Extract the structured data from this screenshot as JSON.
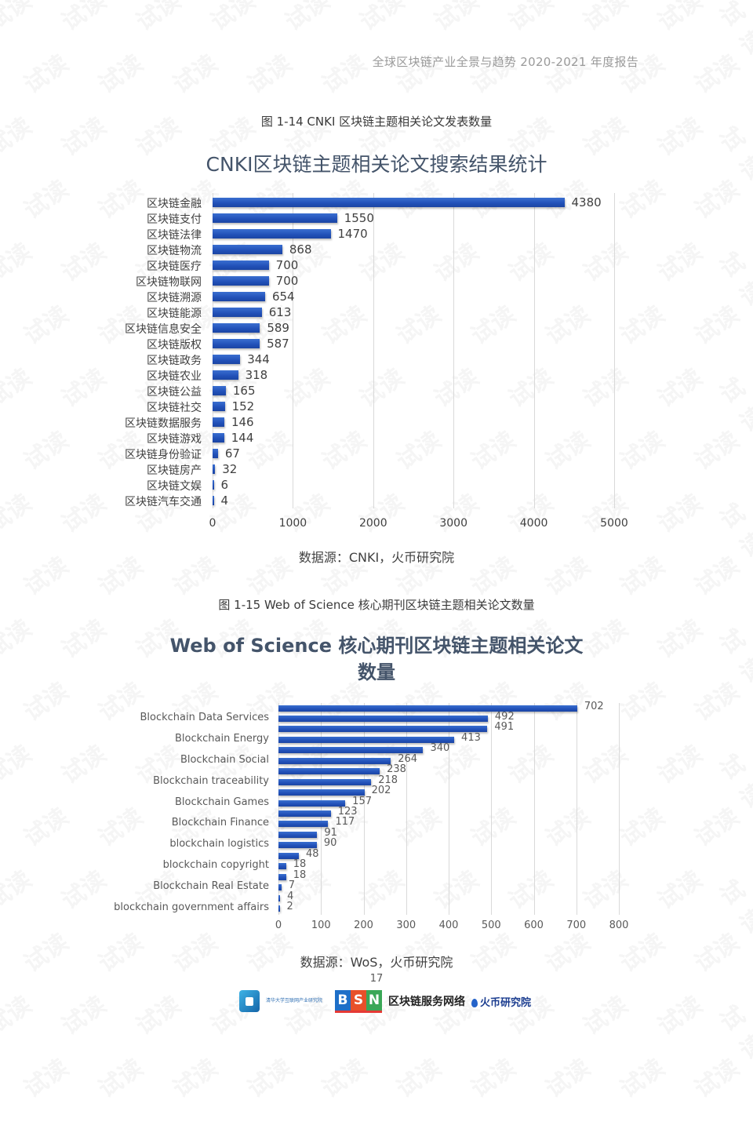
{
  "header": {
    "title": "全球区块链产业全景与趋势  2020-2021 年度报告"
  },
  "figure1": {
    "caption": "图 1-14 CNKI 区块链主题相关论文发表数量",
    "source": "数据源：CNKI，火币研究院"
  },
  "figure2": {
    "caption": "图 1-15 Web of Science  核心期刊区块链主题相关论文数量",
    "source": "数据源：WoS，火币研究院"
  },
  "page_number": "17",
  "footer": {
    "logo1_text": "清华大学互联网产业研究院",
    "bsn_letters": [
      "B",
      "S",
      "N"
    ],
    "bsn_text": "区块链服务网络",
    "huobi_text": "火币研究院"
  },
  "watermark": "试读",
  "colors": {
    "bar": "#2150b8",
    "title": "#44546a",
    "grid": "#d9d9d9"
  },
  "chart_data": [
    {
      "type": "bar",
      "orientation": "horizontal",
      "title": "CNKI区块链主题相关论文搜索结果统计",
      "categories": [
        "区块链金融",
        "区块链支付",
        "区块链法律",
        "区块链物流",
        "区块链医疗",
        "区块链物联网",
        "区块链溯源",
        "区块链能源",
        "区块链信息安全",
        "区块链版权",
        "区块链政务",
        "区块链农业",
        "区块链公益",
        "区块链社交",
        "区块链数据服务",
        "区块链游戏",
        "区块链身份验证",
        "区块链房产",
        "区块链文娱",
        "区块链汽车交通"
      ],
      "values": [
        4380,
        1550,
        1470,
        868,
        700,
        700,
        654,
        613,
        589,
        587,
        344,
        318,
        165,
        152,
        146,
        144,
        67,
        32,
        6,
        4
      ],
      "xlabel": "",
      "ylabel": "",
      "xlim": [
        0,
        5000
      ],
      "xticks": [
        "0",
        "1000",
        "2000",
        "3000",
        "4000",
        "5000"
      ],
      "grid": true,
      "data_labels": true
    },
    {
      "type": "bar",
      "orientation": "horizontal",
      "title": "Web of Science 核心期刊区块链主题相关论文数量",
      "title_lines": [
        "Web of Science 核心期刊区块链主题相关论文",
        "数量"
      ],
      "categories": [
        "",
        "Blockchain Data Services",
        "",
        "Blockchain Energy",
        "",
        "Blockchain Social",
        "",
        "Blockchain traceability",
        "",
        "Blockchain Games",
        "",
        "Blockchain Finance",
        "",
        "blockchain logistics",
        "",
        "blockchain copyright",
        "",
        "Blockchain Real Estate",
        "",
        "blockchain government affairs"
      ],
      "values": [
        702,
        492,
        491,
        413,
        340,
        264,
        238,
        218,
        202,
        157,
        123,
        117,
        91,
        90,
        48,
        18,
        18,
        7,
        4,
        2
      ],
      "xlabel": "",
      "ylabel": "",
      "xlim": [
        0,
        800
      ],
      "xticks": [
        "0",
        "100",
        "200",
        "300",
        "400",
        "500",
        "600",
        "700",
        "800"
      ],
      "grid": true,
      "data_labels": true
    }
  ]
}
